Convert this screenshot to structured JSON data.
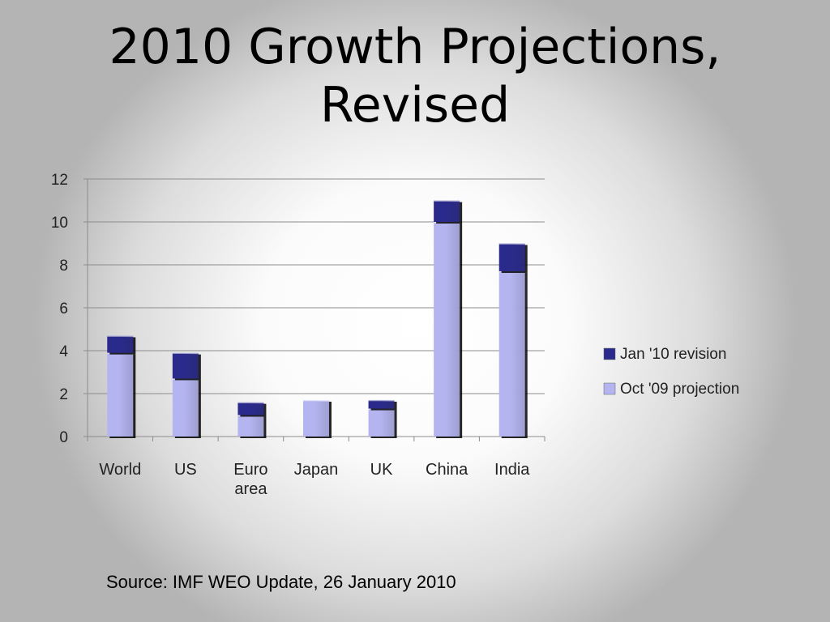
{
  "title": {
    "line1": "2010 Growth Projections,",
    "line2": "Revised"
  },
  "source": "Source: IMF WEO Update, 26 January 2010",
  "chart_data": {
    "type": "bar",
    "stacked": true,
    "categories": [
      [
        "World"
      ],
      [
        "US"
      ],
      [
        "Euro",
        "area"
      ],
      [
        "Japan"
      ],
      [
        "UK"
      ],
      [
        "China"
      ],
      [
        "India"
      ]
    ],
    "series": [
      {
        "name": "Oct '09 projection",
        "color": "#b4b4f0",
        "values": [
          3.9,
          2.7,
          1.0,
          1.7,
          1.3,
          10.0,
          7.7
        ]
      },
      {
        "name": "Jan '10 revision",
        "color": "#2a2a8c",
        "values": [
          0.8,
          1.2,
          0.6,
          0.0,
          0.4,
          1.0,
          1.3
        ]
      }
    ],
    "ylim": [
      0,
      12
    ],
    "yticks": [
      0,
      2,
      4,
      6,
      8,
      10,
      12
    ],
    "grid": true,
    "legend_position": "right",
    "legend_order": [
      "Jan '10 revision",
      "Oct '09 projection"
    ]
  }
}
